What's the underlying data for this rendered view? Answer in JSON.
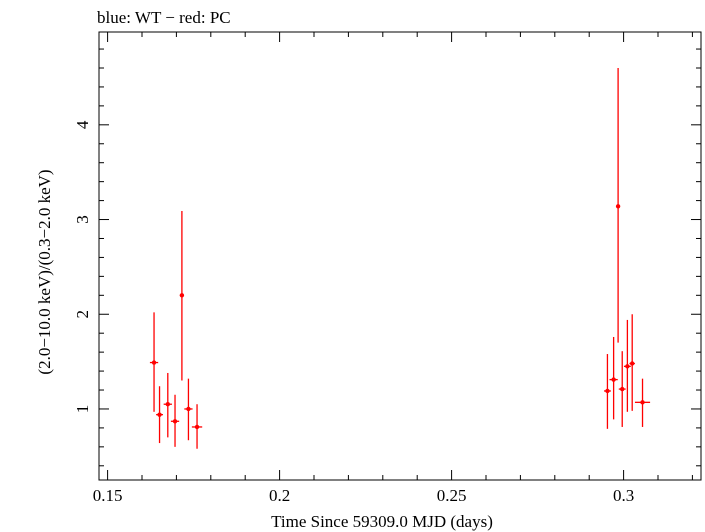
{
  "chart_data": {
    "type": "scatter",
    "title": "blue: WT − red: PC",
    "xlabel": "Time Since 59309.0 MJD (days)",
    "ylabel": "(2.0−10.0 keV)/(0.3−2.0 keV)",
    "xlim": [
      0.1475,
      0.3225
    ],
    "ylim": [
      0.25,
      4.98
    ],
    "xticks": [
      {
        "value": 0.15,
        "label": "0.15"
      },
      {
        "value": 0.2,
        "label": "0.2"
      },
      {
        "value": 0.25,
        "label": "0.25"
      },
      {
        "value": 0.3,
        "label": "0.3"
      }
    ],
    "yticks": [
      {
        "value": 1,
        "label": "1"
      },
      {
        "value": 2,
        "label": "2"
      },
      {
        "value": 3,
        "label": "3"
      },
      {
        "value": 4,
        "label": "4"
      }
    ],
    "series": [
      {
        "name": "PC",
        "color": "#ff0000",
        "points": [
          {
            "x": 0.1635,
            "y": 1.49,
            "xerr": 0.0012,
            "ylo": 0.97,
            "yhi": 2.02
          },
          {
            "x": 0.1651,
            "y": 0.94,
            "xerr": 0.001,
            "ylo": 0.64,
            "yhi": 1.24
          },
          {
            "x": 0.1675,
            "y": 1.05,
            "xerr": 0.0012,
            "ylo": 0.7,
            "yhi": 1.38
          },
          {
            "x": 0.1696,
            "y": 0.87,
            "xerr": 0.0012,
            "ylo": 0.6,
            "yhi": 1.15
          },
          {
            "x": 0.1716,
            "y": 2.2,
            "xerr": 0.0006,
            "ylo": 1.3,
            "yhi": 3.09
          },
          {
            "x": 0.1735,
            "y": 1.0,
            "xerr": 0.0012,
            "ylo": 0.67,
            "yhi": 1.32
          },
          {
            "x": 0.176,
            "y": 0.81,
            "xerr": 0.0015,
            "ylo": 0.58,
            "yhi": 1.05
          },
          {
            "x": 0.2953,
            "y": 1.19,
            "xerr": 0.001,
            "ylo": 0.79,
            "yhi": 1.58
          },
          {
            "x": 0.2971,
            "y": 1.31,
            "xerr": 0.0012,
            "ylo": 0.89,
            "yhi": 1.76
          },
          {
            "x": 0.2984,
            "y": 3.14,
            "xerr": 0.0004,
            "ylo": 1.7,
            "yhi": 4.6
          },
          {
            "x": 0.2996,
            "y": 1.21,
            "xerr": 0.001,
            "ylo": 0.81,
            "yhi": 1.61
          },
          {
            "x": 0.3011,
            "y": 1.45,
            "xerr": 0.001,
            "ylo": 0.97,
            "yhi": 1.94
          },
          {
            "x": 0.3025,
            "y": 1.48,
            "xerr": 0.0008,
            "ylo": 0.98,
            "yhi": 2.0
          },
          {
            "x": 0.3055,
            "y": 1.07,
            "xerr": 0.0022,
            "ylo": 0.81,
            "yhi": 1.32
          }
        ]
      }
    ]
  }
}
